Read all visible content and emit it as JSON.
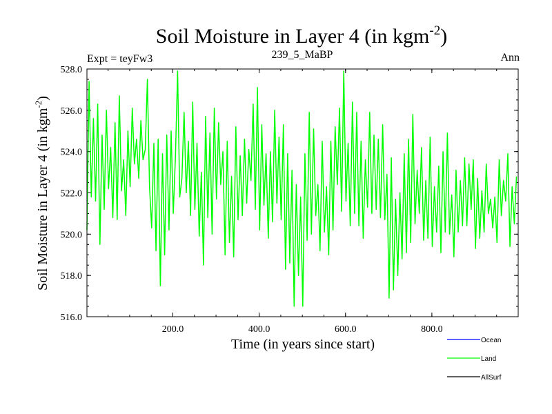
{
  "chart_data": {
    "type": "line",
    "title": "Soil Moisture in Layer 4 (in kgm",
    "title_sup": "-2",
    "title_close": ")",
    "subtitle_left": "Expt = teyFw3",
    "subtitle_center": "239_5_MaBP",
    "subtitle_right": "Ann",
    "xlabel": "Time (in years since start)",
    "ylabel": "Soil Moisture in Layer 4 (in kgm",
    "ylabel_sup": "-2",
    "ylabel_close": ")",
    "xlim": [
      1,
      1000
    ],
    "ylim": [
      516.0,
      528.0
    ],
    "x_ticks": [
      200,
      400,
      600,
      800
    ],
    "x_tick_labels": [
      "200.0",
      "400.0",
      "600.0",
      "800.0"
    ],
    "y_ticks": [
      516,
      518,
      520,
      522,
      524,
      526,
      528
    ],
    "y_tick_labels": [
      "516.0",
      "518.0",
      "520.0",
      "522.0",
      "524.0",
      "526.0",
      "528.0"
    ],
    "grid": false,
    "legend_position": "bottom-right",
    "legend": [
      {
        "name": "Ocean",
        "color": "#0000ff"
      },
      {
        "name": "Land",
        "color": "#00ff00"
      },
      {
        "name": "AllSurf",
        "color": "#000000"
      }
    ],
    "series": [
      {
        "name": "Land",
        "color": "#00ff00",
        "x_start": 1,
        "x_step": 5,
        "values": [
          520.2,
          527.4,
          521.8,
          525.6,
          521.6,
          526.3,
          519.5,
          524.8,
          521.2,
          526.0,
          522.2,
          524.2,
          520.8,
          525.4,
          520.7,
          526.7,
          522.1,
          523.6,
          520.9,
          525.0,
          522.3,
          526.1,
          523.4,
          524.6,
          522.7,
          525.5,
          523.6,
          524.1,
          527.5,
          522.3,
          520.3,
          524.4,
          519.2,
          524.6,
          517.5,
          523.9,
          519.0,
          524.8,
          520.2,
          525.0,
          521.0,
          523.8,
          527.9,
          521.8,
          522.7,
          525.9,
          522.0,
          524.5,
          520.9,
          526.4,
          521.2,
          524.4,
          519.9,
          523.0,
          518.5,
          525.7,
          520.8,
          524.9,
          520.0,
          526.1,
          521.7,
          525.4,
          522.4,
          524.0,
          519.0,
          524.5,
          519.6,
          522.8,
          518.9,
          525.2,
          520.7,
          523.8,
          520.9,
          524.6,
          521.5,
          524.1,
          522.6,
          526.3,
          521.2,
          527.1,
          520.2,
          525.3,
          521.4,
          523.9,
          519.8,
          524.0,
          520.6,
          526.0,
          521.5,
          524.7,
          520.7,
          525.3,
          518.3,
          523.9,
          518.6,
          523.1,
          516.5,
          522.4,
          518.0,
          521.8,
          516.5,
          523.9,
          519.7,
          525.9,
          520.0,
          525.1,
          520.9,
          522.4,
          519.2,
          524.5,
          520.1,
          522.3,
          519.0,
          524.5,
          520.2,
          525.2,
          522.4,
          526.1,
          521.1,
          527.9,
          521.6,
          524.4,
          520.4,
          526.4,
          521.0,
          525.9,
          520.4,
          524.5,
          519.8,
          523.6,
          521.3,
          525.9,
          521.0,
          524.8,
          521.2,
          524.6,
          520.8,
          525.3,
          520.7,
          522.9,
          516.9,
          523.7,
          517.3,
          521.7,
          518.0,
          522.0,
          518.8,
          523.9,
          519.1,
          524.6,
          519.6,
          525.8,
          520.5,
          523.1,
          521.0,
          524.2,
          519.7,
          522.6,
          519.8,
          524.7,
          519.4,
          522.3,
          520.1,
          523.3,
          519.1,
          524.0,
          520.1,
          524.9,
          520.0,
          521.9,
          518.9,
          523.1,
          520.1,
          522.6,
          520.4,
          523.7,
          520.4,
          523.4,
          521.2,
          523.6,
          519.3,
          522.7,
          519.8,
          522.1,
          520.1,
          523.4,
          521.0,
          521.7,
          520.3,
          521.8,
          519.6,
          523.6,
          520.9,
          522.6,
          521.6,
          523.9,
          519.4,
          522.3,
          520.5,
          522.8
        ]
      }
    ]
  }
}
